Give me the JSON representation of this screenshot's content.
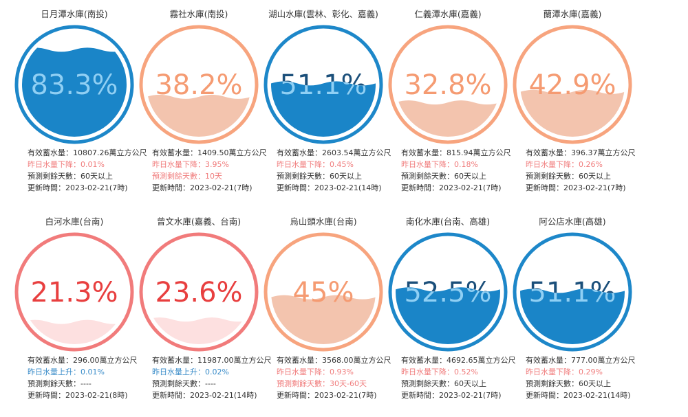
{
  "reservoirs": [
    {
      "name": "日月潭水庫(南投)",
      "level": {
        "value": 83.3,
        "label": "83.3%"
      },
      "ring_color": "#1d87c9",
      "water_color": "#1a85c8",
      "text_color": "#1b4f7a",
      "text_water_color": "#8fd0f5",
      "lines": [
        {
          "text": "有效蓄水量：10807.26萬立方公尺"
        },
        {
          "text": "昨日水量下降：0.01%",
          "color": "#f07c7c"
        },
        {
          "text": "預測剩餘天數：60天以上"
        },
        {
          "text": "更新時間：2023-02-21(7時)"
        }
      ]
    },
    {
      "name": "霧社水庫(南投)",
      "level": {
        "value": 38.2,
        "label": "38.2%"
      },
      "ring_color": "#f7a47e",
      "water_color": "#f3c4ae",
      "text_color": "#f59b72",
      "text_water_color": "#f59b72",
      "lines": [
        {
          "text": "有效蓄水量：1409.50萬立方公尺"
        },
        {
          "text": "昨日水量下降：3.95%",
          "color": "#f07c7c"
        },
        {
          "text": "預測剩餘天數：10天",
          "color": "#f07c7c"
        },
        {
          "text": "更新時間：2023-02-21(7時)"
        }
      ]
    },
    {
      "name": "湖山水庫(雲林、彰化、嘉義)",
      "level": {
        "value": 51.1,
        "label": "51.1%"
      },
      "ring_color": "#1d87c9",
      "water_color": "#1a85c8",
      "text_color": "#1b4f7a",
      "text_water_color": "#8fd0f5",
      "lines": [
        {
          "text": "有效蓄水量：2603.54萬立方公尺"
        },
        {
          "text": "昨日水量下降：0.45%",
          "color": "#f07c7c"
        },
        {
          "text": "預測剩餘天數：60天以上"
        },
        {
          "text": "更新時間：2023-02-21(14時)"
        }
      ]
    },
    {
      "name": "仁義潭水庫(嘉義)",
      "level": {
        "value": 32.8,
        "label": "32.8%"
      },
      "ring_color": "#f7a47e",
      "water_color": "#f3c4ae",
      "text_color": "#f59b72",
      "text_water_color": "#f59b72",
      "lines": [
        {
          "text": "有效蓄水量：815.94萬立方公尺"
        },
        {
          "text": "昨日水量下降：0.18%",
          "color": "#f07c7c"
        },
        {
          "text": "預測剩餘天數：60天以上"
        },
        {
          "text": "更新時間：2023-02-21(7時)"
        }
      ]
    },
    {
      "name": "蘭潭水庫(嘉義)",
      "level": {
        "value": 42.9,
        "label": "42.9%"
      },
      "ring_color": "#f7a47e",
      "water_color": "#f3c4ae",
      "text_color": "#f59b72",
      "text_water_color": "#f59b72",
      "lines": [
        {
          "text": "有效蓄水量：396.37萬立方公尺"
        },
        {
          "text": "昨日水量下降：0.26%",
          "color": "#f07c7c"
        },
        {
          "text": "預測剩餘天數：60天以上"
        },
        {
          "text": "更新時間：2023-02-21(7時)"
        }
      ]
    },
    {
      "name": "白河水庫(台南)",
      "level": {
        "value": 21.3,
        "label": "21.3%"
      },
      "ring_color": "#f17b7b",
      "water_color": "#fde0e0",
      "text_color": "#e83f3f",
      "text_water_color": "#e83f3f",
      "lines": [
        {
          "text": "有效蓄水量：296.00萬立方公尺"
        },
        {
          "text": "昨日水量上升：0.01%",
          "color": "#3a8cc9"
        },
        {
          "text": "預測剩餘天數：----"
        },
        {
          "text": "更新時間：2023-02-21(8時)"
        }
      ]
    },
    {
      "name": "曾文水庫(嘉義、台南)",
      "level": {
        "value": 23.6,
        "label": "23.6%"
      },
      "ring_color": "#f17b7b",
      "water_color": "#fde0e0",
      "text_color": "#e83f3f",
      "text_water_color": "#e83f3f",
      "lines": [
        {
          "text": "有效蓄水量：11987.00萬立方公尺"
        },
        {
          "text": "昨日水量上升：0.02%",
          "color": "#3a8cc9"
        },
        {
          "text": "預測剩餘天數：----"
        },
        {
          "text": "更新時間：2023-02-21(14時)"
        }
      ]
    },
    {
      "name": "烏山頭水庫(台南)",
      "level": {
        "value": 45,
        "label": "45%"
      },
      "ring_color": "#f7a47e",
      "water_color": "#f3c4ae",
      "text_color": "#f59b72",
      "text_water_color": "#f59b72",
      "lines": [
        {
          "text": "有效蓄水量：3568.00萬立方公尺"
        },
        {
          "text": "昨日水量下降：0.93%",
          "color": "#f07c7c"
        },
        {
          "text": "預測剩餘天數：30天-60天",
          "color": "#f07c7c"
        },
        {
          "text": "更新時間：2023-02-21(7時)"
        }
      ]
    },
    {
      "name": "南化水庫(台南、高雄)",
      "level": {
        "value": 52.5,
        "label": "52.5%"
      },
      "ring_color": "#1d87c9",
      "water_color": "#1a85c8",
      "text_color": "#1b4f7a",
      "text_water_color": "#8fd0f5",
      "lines": [
        {
          "text": "有效蓄水量：4692.65萬立方公尺"
        },
        {
          "text": "昨日水量下降：0.52%",
          "color": "#f07c7c"
        },
        {
          "text": "預測剩餘天數：60天以上"
        },
        {
          "text": "更新時間：2023-02-21(7時)"
        }
      ]
    },
    {
      "name": "阿公店水庫(高雄)",
      "level": {
        "value": 51.1,
        "label": "51.1%"
      },
      "ring_color": "#1d87c9",
      "water_color": "#1a85c8",
      "text_color": "#1b4f7a",
      "text_water_color": "#8fd0f5",
      "lines": [
        {
          "text": "有效蓄水量：777.00萬立方公尺"
        },
        {
          "text": "昨日水量下降：0.29%",
          "color": "#f07c7c"
        },
        {
          "text": "預測剩餘天數：60天以上"
        },
        {
          "text": "更新時間：2023-02-21(14時)"
        }
      ]
    }
  ]
}
